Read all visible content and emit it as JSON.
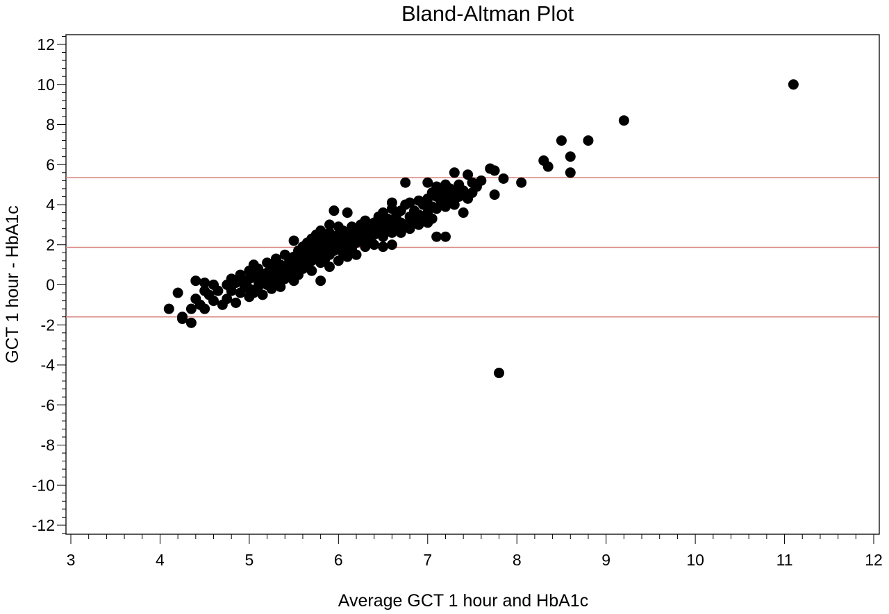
{
  "chart_data": {
    "type": "scatter",
    "title": "Bland-Altman Plot",
    "xlabel": "Average GCT 1 hour and HbA1c",
    "ylabel": "GCT 1 hour - HbA1c",
    "xlim": [
      3,
      12
    ],
    "ylim": [
      -12.5,
      12.5
    ],
    "x_ticks": [
      3,
      4,
      5,
      6,
      7,
      8,
      9,
      10,
      11,
      12
    ],
    "y_ticks": [
      -12,
      -10,
      -8,
      -6,
      -4,
      -2,
      0,
      2,
      4,
      6,
      8,
      10,
      12
    ],
    "grid": false,
    "colors": {
      "points": "#000000",
      "reference_lines": "#d9857f",
      "axis": "#000000"
    },
    "reference_lines": [
      5.35,
      1.87,
      -1.6
    ],
    "points": [
      [
        4.1,
        -1.2
      ],
      [
        4.2,
        -0.4
      ],
      [
        4.25,
        -1.7
      ],
      [
        4.25,
        -1.6
      ],
      [
        4.35,
        -1.9
      ],
      [
        4.35,
        -1.2
      ],
      [
        4.4,
        -0.7
      ],
      [
        4.4,
        0.2
      ],
      [
        4.45,
        -1.0
      ],
      [
        4.5,
        -1.2
      ],
      [
        4.5,
        -0.3
      ],
      [
        4.5,
        0.1
      ],
      [
        4.55,
        -0.5
      ],
      [
        4.6,
        -0.8
      ],
      [
        4.6,
        0.0
      ],
      [
        4.65,
        -0.3
      ],
      [
        4.7,
        -1.0
      ],
      [
        4.75,
        -0.7
      ],
      [
        4.75,
        0.0
      ],
      [
        4.8,
        -0.3
      ],
      [
        4.8,
        0.3
      ],
      [
        4.85,
        -0.9
      ],
      [
        4.85,
        0.1
      ],
      [
        4.9,
        -0.4
      ],
      [
        4.9,
        0.5
      ],
      [
        4.95,
        -0.1
      ],
      [
        4.95,
        0.2
      ],
      [
        5.0,
        -0.6
      ],
      [
        5.0,
        -0.2
      ],
      [
        5.0,
        0.3
      ],
      [
        5.0,
        0.7
      ],
      [
        5.05,
        -0.4
      ],
      [
        5.05,
        0.5
      ],
      [
        5.05,
        1.0
      ],
      [
        5.1,
        -0.1
      ],
      [
        5.1,
        0.2
      ],
      [
        5.1,
        0.8
      ],
      [
        5.15,
        -0.5
      ],
      [
        5.15,
        0.4
      ],
      [
        5.2,
        0.0
      ],
      [
        5.2,
        0.6
      ],
      [
        5.2,
        1.1
      ],
      [
        5.25,
        -0.2
      ],
      [
        5.25,
        0.3
      ],
      [
        5.25,
        0.9
      ],
      [
        5.3,
        0.1
      ],
      [
        5.3,
        0.6
      ],
      [
        5.3,
        1.3
      ],
      [
        5.35,
        -0.1
      ],
      [
        5.35,
        0.5
      ],
      [
        5.35,
        1.0
      ],
      [
        5.4,
        0.3
      ],
      [
        5.4,
        0.8
      ],
      [
        5.4,
        1.5
      ],
      [
        5.45,
        0.6
      ],
      [
        5.45,
        1.2
      ],
      [
        5.5,
        0.2
      ],
      [
        5.5,
        0.9
      ],
      [
        5.5,
        1.4
      ],
      [
        5.5,
        2.2
      ],
      [
        5.55,
        0.5
      ],
      [
        5.55,
        1.1
      ],
      [
        5.55,
        1.7
      ],
      [
        5.6,
        0.8
      ],
      [
        5.6,
        1.3
      ],
      [
        5.6,
        1.9
      ],
      [
        5.65,
        1.0
      ],
      [
        5.65,
        1.5
      ],
      [
        5.65,
        2.1
      ],
      [
        5.7,
        0.7
      ],
      [
        5.7,
        1.2
      ],
      [
        5.7,
        1.8
      ],
      [
        5.7,
        2.3
      ],
      [
        5.75,
        1.4
      ],
      [
        5.75,
        2.0
      ],
      [
        5.75,
        2.5
      ],
      [
        5.8,
        0.2
      ],
      [
        5.8,
        1.1
      ],
      [
        5.8,
        1.6
      ],
      [
        5.8,
        2.2
      ],
      [
        5.8,
        2.7
      ],
      [
        5.85,
        1.3
      ],
      [
        5.85,
        1.9
      ],
      [
        5.85,
        2.4
      ],
      [
        5.9,
        0.9
      ],
      [
        5.9,
        1.5
      ],
      [
        5.9,
        2.1
      ],
      [
        5.9,
        2.6
      ],
      [
        5.9,
        3.0
      ],
      [
        5.95,
        1.7
      ],
      [
        5.95,
        2.3
      ],
      [
        5.95,
        3.7
      ],
      [
        6.0,
        1.2
      ],
      [
        6.0,
        1.9
      ],
      [
        6.0,
        2.5
      ],
      [
        6.0,
        2.9
      ],
      [
        6.05,
        1.6
      ],
      [
        6.05,
        2.2
      ],
      [
        6.05,
        2.7
      ],
      [
        6.1,
        1.4
      ],
      [
        6.1,
        2.0
      ],
      [
        6.1,
        2.6
      ],
      [
        6.1,
        3.6
      ],
      [
        6.15,
        1.8
      ],
      [
        6.15,
        2.4
      ],
      [
        6.15,
        2.9
      ],
      [
        6.2,
        1.5
      ],
      [
        6.2,
        2.1
      ],
      [
        6.2,
        2.7
      ],
      [
        6.25,
        2.3
      ],
      [
        6.25,
        3.0
      ],
      [
        6.3,
        1.9
      ],
      [
        6.3,
        2.6
      ],
      [
        6.3,
        3.2
      ],
      [
        6.35,
        2.2
      ],
      [
        6.35,
        2.8
      ],
      [
        6.4,
        2.0
      ],
      [
        6.4,
        2.5
      ],
      [
        6.4,
        3.1
      ],
      [
        6.45,
        2.7
      ],
      [
        6.45,
        3.4
      ],
      [
        6.5,
        1.9
      ],
      [
        6.5,
        2.4
      ],
      [
        6.5,
        3.0
      ],
      [
        6.5,
        3.6
      ],
      [
        6.55,
        2.8
      ],
      [
        6.55,
        3.3
      ],
      [
        6.6,
        2.0
      ],
      [
        6.6,
        2.6
      ],
      [
        6.6,
        3.2
      ],
      [
        6.6,
        3.8
      ],
      [
        6.6,
        4.1
      ],
      [
        6.65,
        2.9
      ],
      [
        6.65,
        3.5
      ],
      [
        6.7,
        2.6
      ],
      [
        6.7,
        3.1
      ],
      [
        6.7,
        3.7
      ],
      [
        6.75,
        3.0
      ],
      [
        6.75,
        4.0
      ],
      [
        6.75,
        5.1
      ],
      [
        6.8,
        2.8
      ],
      [
        6.8,
        3.4
      ],
      [
        6.8,
        4.1
      ],
      [
        6.85,
        3.2
      ],
      [
        6.85,
        3.7
      ],
      [
        6.9,
        3.0
      ],
      [
        6.9,
        3.5
      ],
      [
        6.9,
        4.2
      ],
      [
        6.95,
        3.4
      ],
      [
        6.95,
        4.0
      ],
      [
        7.0,
        3.1
      ],
      [
        7.0,
        3.6
      ],
      [
        7.0,
        4.3
      ],
      [
        7.0,
        5.1
      ],
      [
        7.05,
        3.3
      ],
      [
        7.05,
        3.9
      ],
      [
        7.05,
        4.6
      ],
      [
        7.1,
        2.4
      ],
      [
        7.1,
        3.8
      ],
      [
        7.1,
        4.4
      ],
      [
        7.1,
        4.9
      ],
      [
        7.15,
        4.1
      ],
      [
        7.15,
        4.7
      ],
      [
        7.2,
        2.4
      ],
      [
        7.2,
        3.9
      ],
      [
        7.2,
        4.5
      ],
      [
        7.2,
        5.0
      ],
      [
        7.25,
        4.2
      ],
      [
        7.25,
        4.8
      ],
      [
        7.3,
        4.0
      ],
      [
        7.3,
        4.6
      ],
      [
        7.3,
        5.6
      ],
      [
        7.35,
        4.4
      ],
      [
        7.35,
        5.0
      ],
      [
        7.4,
        3.6
      ],
      [
        7.4,
        4.7
      ],
      [
        7.45,
        4.3
      ],
      [
        7.45,
        5.5
      ],
      [
        7.5,
        4.6
      ],
      [
        7.5,
        5.1
      ],
      [
        7.55,
        4.9
      ],
      [
        7.6,
        5.2
      ],
      [
        7.7,
        5.8
      ],
      [
        7.75,
        5.7
      ],
      [
        7.75,
        4.5
      ],
      [
        7.85,
        5.3
      ],
      [
        7.8,
        -4.4
      ],
      [
        8.05,
        5.1
      ],
      [
        8.3,
        6.2
      ],
      [
        8.35,
        5.9
      ],
      [
        8.5,
        7.2
      ],
      [
        8.6,
        6.4
      ],
      [
        8.6,
        5.6
      ],
      [
        8.8,
        7.2
      ],
      [
        9.2,
        8.2
      ],
      [
        11.1,
        10.0
      ]
    ]
  }
}
